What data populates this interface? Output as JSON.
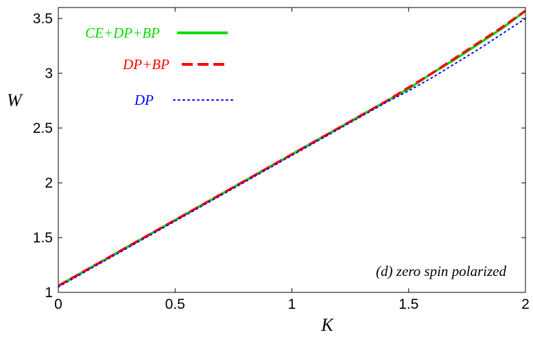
{
  "chart_data": {
    "type": "line",
    "xlabel": "K",
    "ylabel": "W",
    "xlim": [
      0,
      2
    ],
    "ylim": [
      1,
      3.6
    ],
    "xticks": [
      "0",
      "0.5",
      "1",
      "1.5",
      "2"
    ],
    "yticks": [
      "1",
      "1.5",
      "2",
      "2.5",
      "3",
      "3.5"
    ],
    "grid": false,
    "legend_position": "top-left",
    "annotation": "(d) zero spin polarized",
    "x": [
      0,
      0.1,
      0.2,
      0.3,
      0.4,
      0.5,
      0.6,
      0.7,
      0.8,
      0.9,
      1.0,
      1.1,
      1.2,
      1.3,
      1.4,
      1.5,
      1.6,
      1.7,
      1.8,
      1.9,
      2.0
    ],
    "series": [
      {
        "name": "CE+DP+BP",
        "color": "#00dd00",
        "style": "solid",
        "values": [
          1.06,
          1.18,
          1.3,
          1.42,
          1.54,
          1.66,
          1.78,
          1.9,
          2.02,
          2.14,
          2.26,
          2.38,
          2.5,
          2.62,
          2.74,
          2.86,
          3.0,
          3.13,
          3.27,
          3.41,
          3.57
        ]
      },
      {
        "name": "DP+BP",
        "color": "#ff0000",
        "style": "dashed",
        "values": [
          1.06,
          1.18,
          1.3,
          1.42,
          1.54,
          1.66,
          1.78,
          1.9,
          2.02,
          2.14,
          2.26,
          2.38,
          2.5,
          2.62,
          2.74,
          2.87,
          3.0,
          3.14,
          3.28,
          3.42,
          3.57
        ]
      },
      {
        "name": "DP",
        "color": "#0000ff",
        "style": "dotted",
        "values": [
          1.05,
          1.17,
          1.29,
          1.41,
          1.53,
          1.65,
          1.77,
          1.89,
          2.01,
          2.13,
          2.25,
          2.37,
          2.49,
          2.61,
          2.73,
          2.84,
          2.96,
          3.09,
          3.22,
          3.36,
          3.5
        ]
      }
    ]
  }
}
